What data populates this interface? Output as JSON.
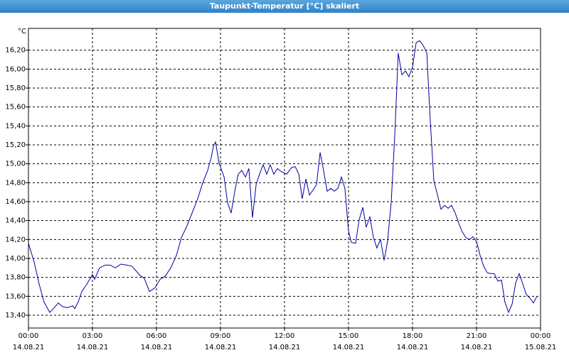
{
  "chart_data": {
    "type": "line",
    "title": "Taupunkt-Temperatur [°C] skaliert",
    "ylabel": "°C",
    "color": "#0000a0",
    "grid": true,
    "xlim": [
      0,
      24
    ],
    "ylim": [
      13.265,
      16.43
    ],
    "xticks": [
      {
        "value": 0,
        "label": "00:00",
        "date": "14.08.21"
      },
      {
        "value": 3,
        "label": "03:00",
        "date": "14.08.21"
      },
      {
        "value": 6,
        "label": "06:00",
        "date": "14.08.21"
      },
      {
        "value": 9,
        "label": "09:00",
        "date": "14.08.21"
      },
      {
        "value": 12,
        "label": "12:00",
        "date": "14.08.21"
      },
      {
        "value": 15,
        "label": "15:00",
        "date": "14.08.21"
      },
      {
        "value": 18,
        "label": "18:00",
        "date": "14.08.21"
      },
      {
        "value": 21,
        "label": "21:00",
        "date": "14.08.21"
      },
      {
        "value": 24,
        "label": "00:00",
        "date": "15.08.21"
      }
    ],
    "yticks": [
      {
        "value": 16.2,
        "label": "16,20"
      },
      {
        "value": 16.0,
        "label": "16,00"
      },
      {
        "value": 15.8,
        "label": "15,80"
      },
      {
        "value": 15.6,
        "label": "15,60"
      },
      {
        "value": 15.4,
        "label": "15,40"
      },
      {
        "value": 15.2,
        "label": "15,20"
      },
      {
        "value": 15.0,
        "label": "15,00"
      },
      {
        "value": 14.8,
        "label": "14,80"
      },
      {
        "value": 14.6,
        "label": "14,60"
      },
      {
        "value": 14.4,
        "label": "14,40"
      },
      {
        "value": 14.2,
        "label": "14,20"
      },
      {
        "value": 14.0,
        "label": "14,00"
      },
      {
        "value": 13.8,
        "label": "13,80"
      },
      {
        "value": 13.6,
        "label": "13,60"
      },
      {
        "value": 13.4,
        "label": "13,40"
      }
    ],
    "x": [
      0,
      0.27,
      0.5,
      0.73,
      1,
      1.17,
      1.4,
      1.6,
      1.83,
      2.07,
      2.17,
      2.33,
      2.5,
      2.77,
      3,
      3.1,
      3.33,
      3.6,
      3.83,
      4.07,
      4.33,
      4.6,
      4.83,
      5,
      5.23,
      5.43,
      5.67,
      5.93,
      6.17,
      6.4,
      6.67,
      6.93,
      7.17,
      7.4,
      7.67,
      7.93,
      8.17,
      8.4,
      8.57,
      8.67,
      8.77,
      8.93,
      9.17,
      9.33,
      9.5,
      9.67,
      9.83,
      10,
      10.17,
      10.33,
      10.5,
      10.67,
      10.83,
      11,
      11.17,
      11.33,
      11.5,
      11.67,
      11.83,
      12.1,
      12.33,
      12.5,
      12.67,
      12.83,
      13,
      13.17,
      13.33,
      13.5,
      13.67,
      13.83,
      14,
      14.17,
      14.33,
      14.5,
      14.67,
      14.83,
      15,
      15.13,
      15.33,
      15.5,
      15.67,
      15.83,
      16,
      16.17,
      16.33,
      16.5,
      16.67,
      16.83,
      17,
      17.17,
      17.33,
      17.5,
      17.67,
      17.83,
      18,
      18.17,
      18.33,
      18.5,
      18.67,
      18.83,
      19,
      19.17,
      19.33,
      19.5,
      19.67,
      19.83,
      20,
      20.17,
      20.33,
      20.5,
      20.67,
      20.83,
      21,
      21.17,
      21.33,
      21.5,
      21.67,
      21.83,
      22,
      22.17,
      22.33,
      22.5,
      22.67,
      22.83,
      23,
      23.17,
      23.33,
      23.5,
      23.67,
      23.83
    ],
    "values": [
      14.16,
      13.96,
      13.73,
      13.54,
      13.43,
      13.47,
      13.53,
      13.49,
      13.48,
      13.5,
      13.47,
      13.54,
      13.65,
      13.74,
      13.83,
      13.78,
      13.9,
      13.93,
      13.93,
      13.9,
      13.94,
      13.93,
      13.92,
      13.88,
      13.82,
      13.79,
      13.65,
      13.69,
      13.78,
      13.81,
      13.9,
      14.03,
      14.22,
      14.33,
      14.48,
      14.63,
      14.8,
      14.93,
      15.07,
      15.19,
      15.23,
      15.01,
      14.86,
      14.59,
      14.48,
      14.71,
      14.89,
      14.93,
      14.86,
      14.95,
      14.43,
      14.78,
      14.89,
      14.99,
      14.89,
      14.99,
      14.89,
      14.95,
      14.92,
      14.89,
      14.96,
      14.97,
      14.89,
      14.63,
      14.84,
      14.67,
      14.72,
      14.78,
      15.12,
      14.93,
      14.71,
      14.74,
      14.71,
      14.74,
      14.86,
      14.74,
      14.29,
      14.17,
      14.16,
      14.41,
      14.54,
      14.33,
      14.44,
      14.22,
      14.11,
      14.2,
      13.98,
      14.18,
      14.59,
      15.31,
      16.17,
      15.94,
      15.98,
      15.92,
      16.02,
      16.28,
      16.3,
      16.25,
      16.17,
      15.46,
      14.82,
      14.67,
      14.52,
      14.56,
      14.53,
      14.56,
      14.48,
      14.37,
      14.28,
      14.22,
      14.2,
      14.23,
      14.18,
      14.03,
      13.92,
      13.85,
      13.84,
      13.84,
      13.76,
      13.77,
      13.54,
      13.43,
      13.52,
      13.74,
      13.84,
      13.73,
      13.62,
      13.58,
      13.53,
      13.6
    ]
  }
}
